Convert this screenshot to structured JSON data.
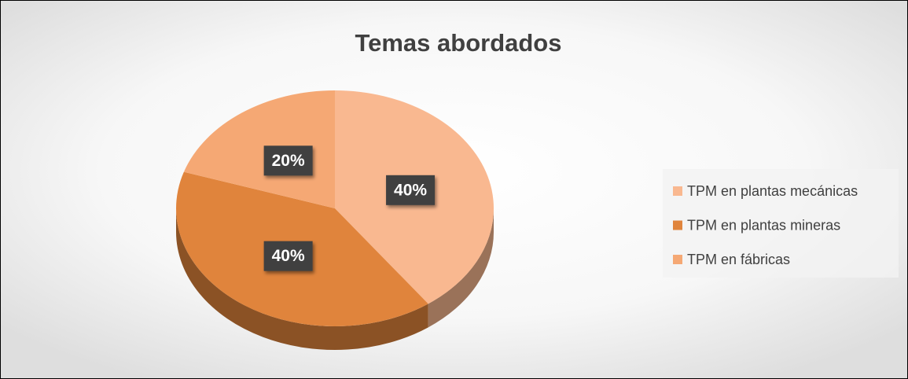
{
  "chart_data": {
    "type": "pie",
    "title": "Temas abordados",
    "categories": [
      "TPM en plantas mecánicas",
      "TPM en plantas mineras",
      "TPM en fábricas"
    ],
    "values": [
      40,
      40,
      20
    ],
    "value_labels": [
      "40%",
      "40%",
      "20%"
    ],
    "colors": [
      "#f9b890",
      "#e0843c",
      "#f5a874"
    ],
    "legend": "right"
  }
}
